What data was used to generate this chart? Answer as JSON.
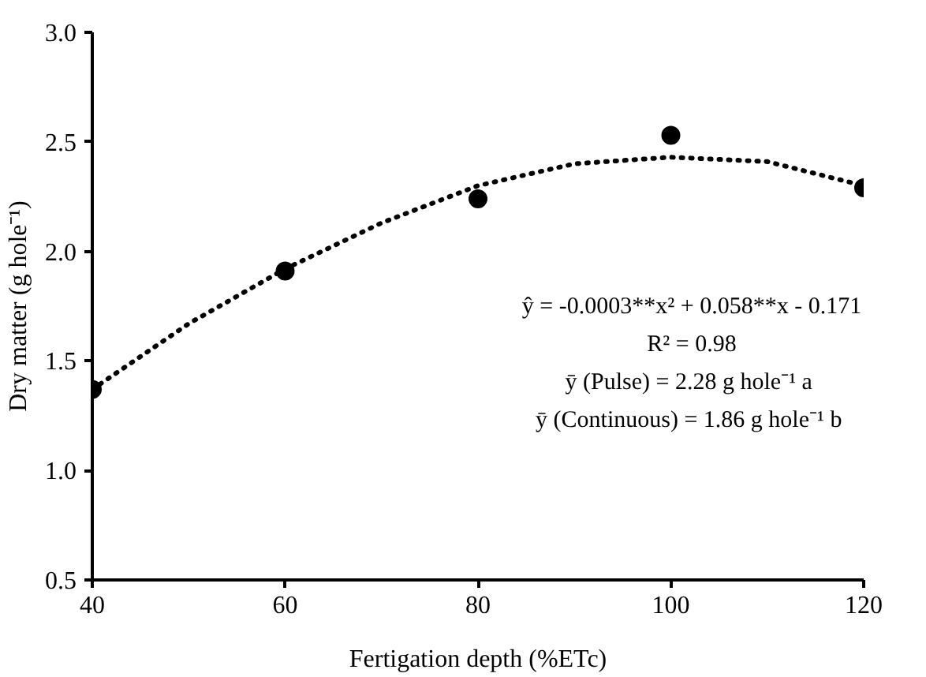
{
  "chart_data": {
    "type": "scatter",
    "xlabel": "Fertigation depth (%ETc)",
    "ylabel": "Dry matter (g hole⁻¹)",
    "xlim": [
      40,
      120
    ],
    "ylim": [
      0.5,
      3.0
    ],
    "xticks": [
      40,
      60,
      80,
      100,
      120
    ],
    "yticks": [
      {
        "value": 0.5,
        "label": "0.5"
      },
      {
        "value": 1.0,
        "label": "1.0"
      },
      {
        "value": 1.5,
        "label": "1.5"
      },
      {
        "value": 2.0,
        "label": "2.0"
      },
      {
        "value": 2.5,
        "label": "2.5"
      },
      {
        "value": 3.0,
        "label": "3.0"
      }
    ],
    "grid": false,
    "series": [
      {
        "color": "#000000",
        "marker": "circle",
        "x": [
          40,
          60,
          80,
          100,
          120
        ],
        "values": [
          1.37,
          1.91,
          2.24,
          2.53,
          2.29
        ]
      },
      {
        "type": "line",
        "color": "#000000",
        "line_style": "dotted",
        "x": [
          40,
          50,
          60,
          70,
          80,
          90,
          100,
          110,
          120
        ],
        "values": [
          1.37,
          1.67,
          1.92,
          2.13,
          2.3,
          2.4,
          2.43,
          2.41,
          2.3
        ]
      }
    ],
    "annotations": [
      "ŷ = -0.0003**x² + 0.058**x - 0.171",
      "R² = 0.98",
      "ȳ (Pulse) =  2.28 g hole⁻¹ a",
      "ȳ (Continuous) =  1.86 g hole⁻¹ b"
    ]
  }
}
